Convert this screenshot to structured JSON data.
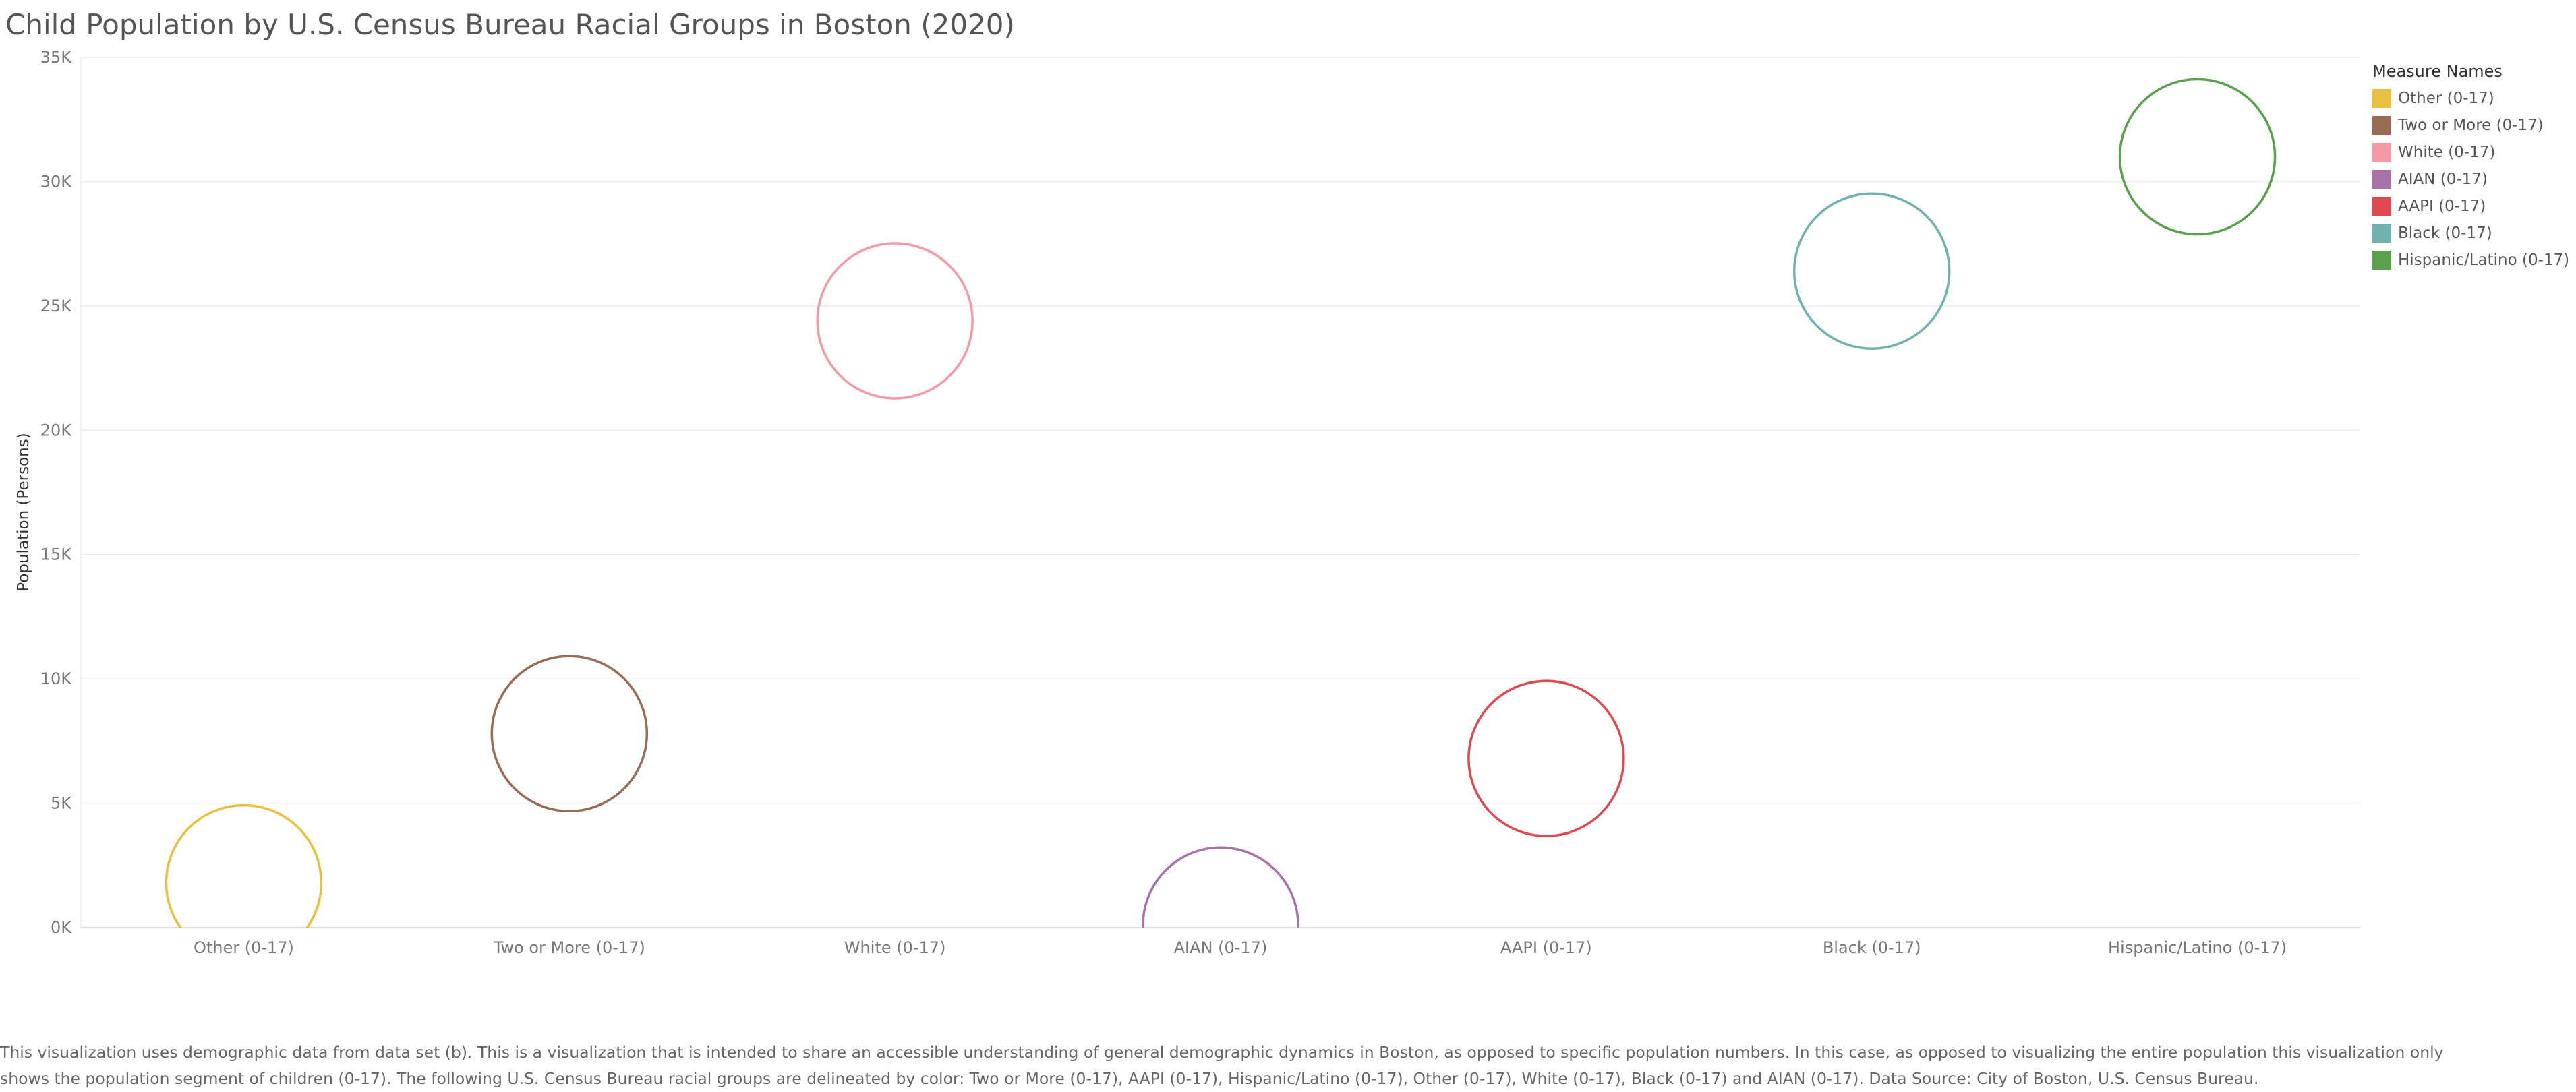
{
  "chart_data": {
    "type": "scatter",
    "title": "Child Population by U.S. Census Bureau Racial Groups in Boston (2020)",
    "xlabel": "",
    "ylabel": "Population (Persons)",
    "ylim": [
      0,
      35000
    ],
    "yticks": [
      {
        "value": 0,
        "label": "0K"
      },
      {
        "value": 5000,
        "label": "5K"
      },
      {
        "value": 10000,
        "label": "10K"
      },
      {
        "value": 15000,
        "label": "15K"
      },
      {
        "value": 20000,
        "label": "20K"
      },
      {
        "value": 25000,
        "label": "25K"
      },
      {
        "value": 30000,
        "label": "30K"
      },
      {
        "value": 35000,
        "label": "35K"
      }
    ],
    "categories": [
      "Other (0-17)",
      "Two or More (0-17)",
      "White (0-17)",
      "AIAN (0-17)",
      "AAPI (0-17)",
      "Black (0-17)",
      "Hispanic/Latino (0-17)"
    ],
    "values": [
      1800,
      7800,
      24400,
      100,
      6800,
      26400,
      31000
    ],
    "colors": [
      "#e8c140",
      "#9a6b55",
      "#f59aa5",
      "#a873a8",
      "#de4a4f",
      "#6fb2b0",
      "#57a24a"
    ],
    "grid": true,
    "mark": "open-circle",
    "legend": {
      "title": "Measure Names",
      "position": "right",
      "items": [
        {
          "label": "Other (0-17)",
          "color": "#e8c140"
        },
        {
          "label": "Two or More (0-17)",
          "color": "#9a6b55"
        },
        {
          "label": "White (0-17)",
          "color": "#f59aa5"
        },
        {
          "label": "AIAN (0-17)",
          "color": "#a873a8"
        },
        {
          "label": "AAPI (0-17)",
          "color": "#de4a4f"
        },
        {
          "label": "Black (0-17)",
          "color": "#6fb2b0"
        },
        {
          "label": "Hispanic/Latino (0-17)",
          "color": "#57a24a"
        }
      ]
    }
  },
  "footnote": {
    "line1": "This visualization uses demographic data from data set (b).  This is a visualization that is intended to share an accessible understanding of general demographic dynamics in Boston, as opposed to specific population numbers. In this case, as opposed to visualizing the entire population this visualization only",
    "line2": "shows the population segment of children (0-17). The following U.S. Census Bureau racial groups are delineated by color: Two or More (0-17), AAPI (0-17), Hispanic/Latino (0-17), Other (0-17), White (0-17), Black (0-17) and AIAN (0-17). Data Source: City of Boston, U.S. Census Bureau."
  }
}
